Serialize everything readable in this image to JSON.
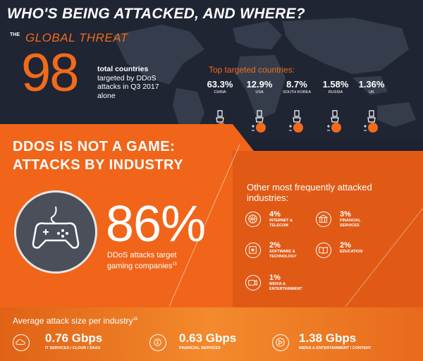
{
  "header": {
    "headline": "WHO'S BEING ATTACKED, AND WHERE?",
    "the_label": "THE",
    "threat_label": "GLOBAL THREAT",
    "countries_count": "98",
    "countries_text_bold": "total countries",
    "countries_text_rest": "targeted by DDoS attacks in Q3 2017 alone"
  },
  "top_countries": {
    "title": "Top targeted countries:",
    "items": [
      {
        "pct": "63.3%",
        "name": "CHINA"
      },
      {
        "pct": "12.9%",
        "name": "USA"
      },
      {
        "pct": "8.7%",
        "name": "SOUTH KOREA"
      },
      {
        "pct": "1.58%",
        "name": "RUSSIA"
      },
      {
        "pct": "1.36%",
        "name": "UK"
      }
    ]
  },
  "gaming": {
    "title_line1": "DDOS IS NOT A GAME:",
    "title_line2": "ATTACKS BY INDUSTRY",
    "percent": "86%",
    "text": "DDoS attacks target gaming companies",
    "footnote": "15"
  },
  "other_industries": {
    "title": "Other most frequently attacked industries:",
    "items": [
      {
        "pct": "4%",
        "name_line1": "INTERNET &",
        "name_line2": "TELECOM",
        "icon": "globe-icon"
      },
      {
        "pct": "3%",
        "name_line1": "FINANCIAL",
        "name_line2": "SERVICES",
        "icon": "bank-icon"
      },
      {
        "pct": "2%",
        "name_line1": "SOFTWARE &",
        "name_line2": "TECHNOLOGY",
        "icon": "settings-icon"
      },
      {
        "pct": "2%",
        "name_line1": "EDUCATION",
        "name_line2": "",
        "icon": "book-icon"
      },
      {
        "pct": "1%",
        "name_line1": "MEDIA &",
        "name_line2": "ENTERTAINMENT",
        "icon": "camera-icon"
      }
    ]
  },
  "attack_size": {
    "title": "Average attack size per industry",
    "footnote": "16",
    "items": [
      {
        "value": "0.76 Gbps",
        "label": "IT SERVICES / CLOUD / SAAS",
        "icon": "cloud-icon"
      },
      {
        "value": "0.63 Gbps",
        "label": "FINANCIAL SERVICES",
        "icon": "money-icon"
      },
      {
        "value": "1.38 Gbps",
        "label": "MEDIA & ENTERTAINMENT / CONTENT",
        "icon": "play-icon"
      }
    ]
  },
  "colors": {
    "accent": "#f26a1b",
    "dark": "#1f2533",
    "white": "#ffffff"
  }
}
